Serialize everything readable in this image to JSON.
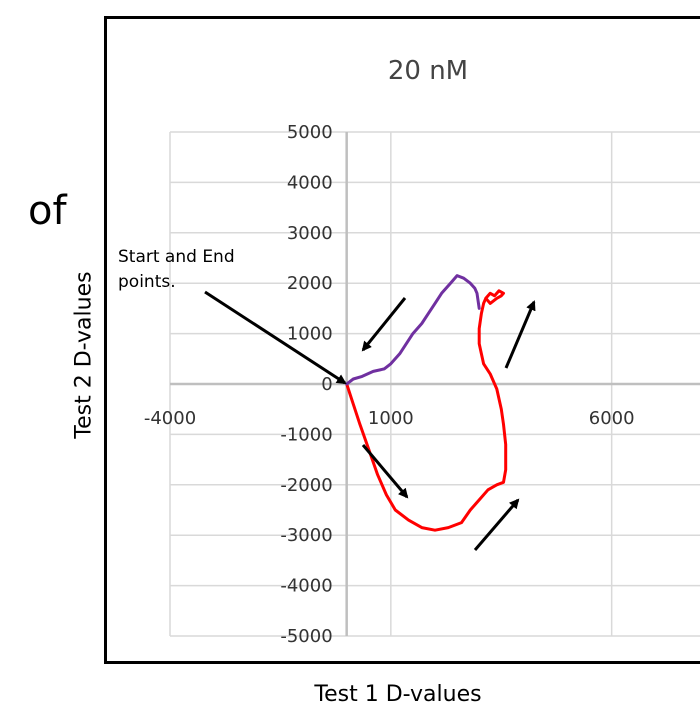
{
  "page": {
    "left_fragment": "of",
    "ylabel": "Test 2 D-values",
    "xlabel": "Test 1 D-values"
  },
  "chart_data": {
    "type": "line",
    "title": "20 nM",
    "xlabel": "Test 1 D-values",
    "ylabel": "Test 2 D-values",
    "xlim": [
      -4000,
      8000
    ],
    "ylim": [
      -5000,
      5000
    ],
    "x_ticks": [
      -4000,
      1000,
      6000
    ],
    "x_tick_labels": [
      "-4000",
      "1000",
      "6000"
    ],
    "y_ticks": [
      5000,
      4000,
      3000,
      2000,
      1000,
      0,
      -1000,
      -2000,
      -3000,
      -4000,
      -5000
    ],
    "y_tick_labels": [
      "5000",
      "4000",
      "3000",
      "2000",
      "1000",
      "0",
      "-1000",
      "-2000",
      "-3000",
      "-4000",
      "-5000"
    ],
    "grid": true,
    "annotation": {
      "lines": [
        "Start and End",
        "points."
      ]
    },
    "colors": {
      "red": "#ff0000",
      "purple": "#7030a0",
      "arrow": "#000000",
      "grid": "#d9d9d9",
      "axis": "#bfbfbf"
    },
    "series": [
      {
        "color": "#ff0000",
        "x": [
          0,
          150,
          300,
          500,
          700,
          900,
          1100,
          1400,
          1700,
          2000,
          2300,
          2600,
          2800,
          3000,
          3200,
          3400,
          3550,
          3600,
          3600,
          3550,
          3500,
          3400,
          3250,
          3100,
          3050,
          3000,
          3000,
          3050,
          3100,
          3150,
          3250,
          3350,
          3450,
          3550,
          3500,
          3400,
          3250,
          3150
        ],
        "y": [
          0,
          -400,
          -800,
          -1300,
          -1800,
          -2200,
          -2500,
          -2700,
          -2850,
          -2900,
          -2850,
          -2750,
          -2500,
          -2300,
          -2100,
          -2000,
          -1950,
          -1700,
          -1200,
          -800,
          -500,
          -100,
          200,
          400,
          600,
          800,
          1100,
          1400,
          1600,
          1700,
          1800,
          1750,
          1850,
          1800,
          1750,
          1700,
          1600,
          1700
        ]
      },
      {
        "color": "#7030a0",
        "x": [
          0,
          150,
          350,
          600,
          850,
          1000,
          1200,
          1350,
          1500,
          1700,
          1850,
          2000,
          2150,
          2350,
          2500,
          2650,
          2800,
          2900,
          2950,
          3000
        ],
        "y": [
          0,
          100,
          150,
          250,
          300,
          400,
          600,
          800,
          1000,
          1200,
          1400,
          1600,
          1800,
          2000,
          2150,
          2100,
          2000,
          1900,
          1800,
          1500
        ]
      }
    ]
  }
}
